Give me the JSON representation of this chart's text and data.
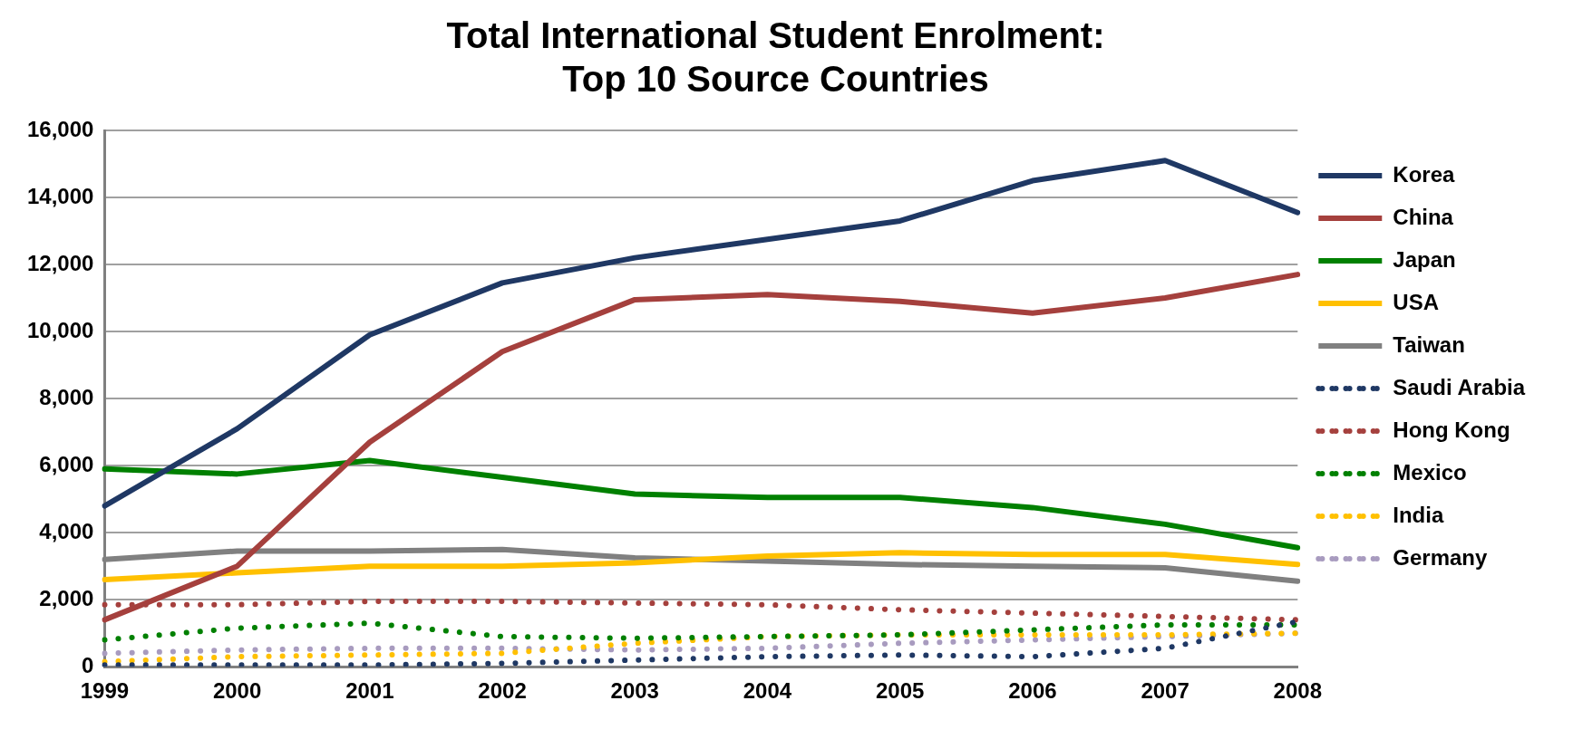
{
  "chart_data": {
    "type": "line",
    "title": "Total International Student Enrolment: Top 10 Source Countries",
    "categories": [
      "1999",
      "2000",
      "2001",
      "2002",
      "2003",
      "2004",
      "2005",
      "2006",
      "2007",
      "2008"
    ],
    "ylim": [
      0,
      16000
    ],
    "yticks": [
      {
        "value": 0,
        "label": "0"
      },
      {
        "value": 2000,
        "label": "2,000"
      },
      {
        "value": 4000,
        "label": "4,000"
      },
      {
        "value": 6000,
        "label": "6,000"
      },
      {
        "value": 8000,
        "label": "8,000"
      },
      {
        "value": 10000,
        "label": "10,000"
      },
      {
        "value": 12000,
        "label": "12,000"
      },
      {
        "value": 14000,
        "label": "14,000"
      },
      {
        "value": 16000,
        "label": "16,000"
      }
    ],
    "grid": "y",
    "legend": "right",
    "marker": "none",
    "series": [
      {
        "name": "Korea",
        "color": "#1f3864",
        "line_style": "solid",
        "values": [
          4800,
          7100,
          9900,
          11450,
          12200,
          12750,
          13300,
          14500,
          15100,
          13550
        ]
      },
      {
        "name": "China",
        "color": "#a5403d",
        "line_style": "solid",
        "values": [
          1400,
          3000,
          6700,
          9400,
          10950,
          11100,
          10900,
          10550,
          11000,
          11700
        ]
      },
      {
        "name": "Japan",
        "color": "#008000",
        "line_style": "solid",
        "values": [
          5900,
          5750,
          6150,
          5650,
          5150,
          5050,
          5050,
          4750,
          4250,
          3550
        ]
      },
      {
        "name": "USA",
        "color": "#ffc000",
        "line_style": "solid",
        "values": [
          2600,
          2800,
          3000,
          3000,
          3100,
          3300,
          3400,
          3350,
          3350,
          3050
        ]
      },
      {
        "name": "Taiwan",
        "color": "#808080",
        "line_style": "solid",
        "values": [
          3200,
          3450,
          3450,
          3500,
          3250,
          3150,
          3050,
          3000,
          2950,
          2550
        ]
      },
      {
        "name": "Saudi Arabia",
        "color": "#1f3864",
        "line_style": "dotted",
        "values": [
          50,
          50,
          50,
          100,
          200,
          300,
          350,
          300,
          550,
          1350
        ]
      },
      {
        "name": "Hong Kong",
        "color": "#a5403d",
        "line_style": "dotted",
        "values": [
          1850,
          1850,
          1950,
          1950,
          1900,
          1850,
          1700,
          1600,
          1500,
          1400
        ]
      },
      {
        "name": "Mexico",
        "color": "#008000",
        "line_style": "dotted",
        "values": [
          800,
          1150,
          1300,
          900,
          850,
          900,
          950,
          1100,
          1250,
          1250
        ]
      },
      {
        "name": "India",
        "color": "#ffc000",
        "line_style": "dotted",
        "values": [
          150,
          300,
          350,
          400,
          700,
          900,
          950,
          950,
          950,
          1000
        ]
      },
      {
        "name": "Germany",
        "color": "#a89bbf",
        "line_style": "dotted",
        "values": [
          400,
          500,
          550,
          550,
          500,
          550,
          700,
          800,
          900,
          1000
        ]
      }
    ]
  }
}
